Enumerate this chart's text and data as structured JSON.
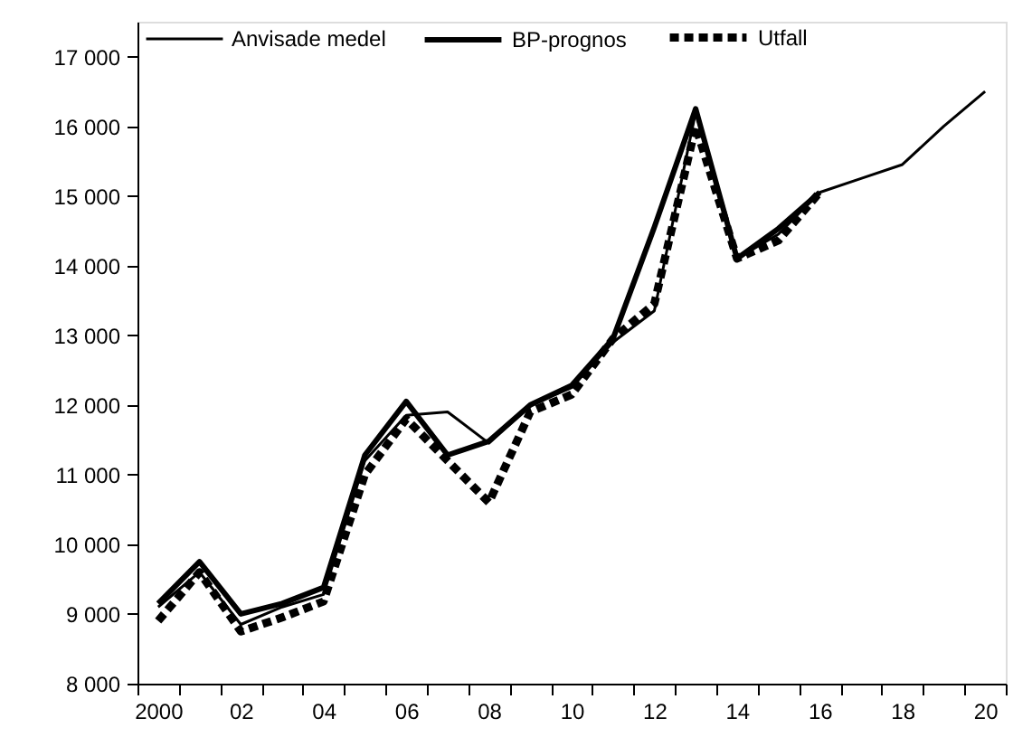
{
  "chart_data": {
    "type": "line",
    "categories": [
      "2000",
      null,
      "02",
      null,
      "04",
      null,
      "06",
      null,
      "08",
      null,
      "10",
      null,
      "12",
      null,
      "14",
      null,
      "16",
      null,
      "18",
      null,
      "20"
    ],
    "series": [
      {
        "name": "Anvisade medel",
        "color": "#000000",
        "line_style": "solid",
        "values": [
          9100,
          9600,
          8850,
          9100,
          9280,
          11200,
          11850,
          11900,
          11450,
          12000,
          12250,
          12900,
          13350,
          16200,
          14100,
          14450,
          15050,
          15250,
          15450,
          16000,
          16500
        ]
      },
      {
        "name": "BP-prognos",
        "color": "#000000",
        "line_style": "solid",
        "values": [
          9150,
          9750,
          9000,
          9150,
          9380,
          11280,
          12050,
          11280,
          11480,
          12000,
          12280,
          12950,
          14550,
          16250,
          14100,
          14530,
          15050,
          null,
          null,
          null,
          null
        ]
      },
      {
        "name": "Utfall",
        "color": "#000000",
        "line_style": "dashed",
        "values": [
          8900,
          9600,
          8750,
          8950,
          9180,
          11000,
          11800,
          11200,
          10600,
          11900,
          12150,
          12950,
          13450,
          16000,
          14100,
          14360,
          15050,
          null,
          null,
          null,
          null
        ]
      }
    ],
    "ylim": [
      8000,
      17500
    ],
    "yticks": [
      {
        "value": 8000,
        "label": "8 000"
      },
      {
        "value": 9000,
        "label": "9 000"
      },
      {
        "value": 10000,
        "label": "10 000"
      },
      {
        "value": 11000,
        "label": "11 000"
      },
      {
        "value": 12000,
        "label": "12 000"
      },
      {
        "value": 13000,
        "label": "13 000"
      },
      {
        "value": 14000,
        "label": "14 000"
      },
      {
        "value": 15000,
        "label": "15 000"
      },
      {
        "value": 16000,
        "label": "16 000"
      },
      {
        "value": 17000,
        "label": "17 000"
      }
    ],
    "grid": false,
    "legend": "top",
    "marker": "none"
  }
}
